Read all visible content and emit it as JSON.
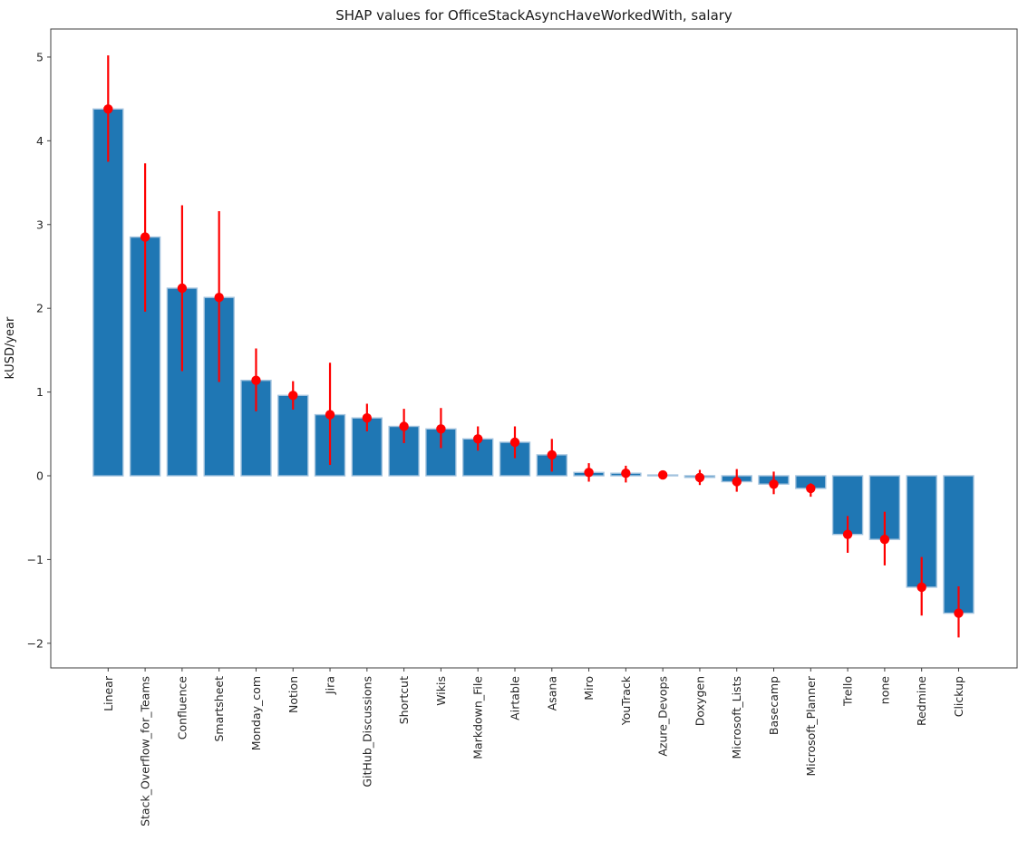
{
  "figure": {
    "title": "SHAP values for OfficeStackAsyncHaveWorkedWith, salary",
    "ylabel": "kUSD/year"
  },
  "chart_data": {
    "type": "bar",
    "title": "SHAP values for OfficeStackAsyncHaveWorkedWith, salary",
    "xlabel": "",
    "ylabel": "kUSD/year",
    "grid": false,
    "legend": null,
    "ylim": [
      -2.294,
      5.335
    ],
    "yticks": [
      5,
      4,
      3,
      2,
      1,
      0,
      -1,
      -2
    ],
    "ytick_labels": [
      "5",
      "4",
      "3",
      "2",
      "1",
      "0",
      "−1",
      "−2"
    ],
    "categories": [
      "Linear",
      "Stack_Overflow_for_Teams",
      "Confluence",
      "Smartsheet",
      "Monday_com",
      "Notion",
      "Jira",
      "GitHub_Discussions",
      "Shortcut",
      "Wikis",
      "Markdown_File",
      "Airtable",
      "Asana",
      "Miro",
      "YouTrack",
      "Azure_Devops",
      "Doxygen",
      "Microsoft_Lists",
      "Basecamp",
      "Microsoft_Planner",
      "Trello",
      "none",
      "Redmine",
      "Clickup"
    ],
    "values": [
      4.38,
      2.85,
      2.24,
      2.13,
      1.14,
      0.96,
      0.73,
      0.69,
      0.59,
      0.56,
      0.44,
      0.4,
      0.25,
      0.04,
      0.03,
      0.01,
      -0.02,
      -0.07,
      -0.1,
      -0.15,
      -0.7,
      -0.76,
      -1.33,
      -1.64
    ],
    "error_low": [
      3.75,
      1.96,
      1.25,
      1.12,
      0.77,
      0.79,
      0.13,
      0.53,
      0.39,
      0.33,
      0.3,
      0.21,
      0.05,
      -0.07,
      -0.08,
      0.01,
      -0.11,
      -0.19,
      -0.22,
      -0.25,
      -0.92,
      -1.07,
      -1.67,
      -1.93
    ],
    "error_high": [
      5.02,
      3.73,
      3.23,
      3.16,
      1.52,
      1.13,
      1.35,
      0.86,
      0.8,
      0.81,
      0.59,
      0.59,
      0.44,
      0.15,
      0.12,
      0.01,
      0.07,
      0.08,
      0.05,
      -0.09,
      -0.48,
      -0.43,
      -0.97,
      -1.32
    ],
    "colors": {
      "bar_fill": "#1f77b4",
      "bar_edge": "#a3c3de",
      "error_bar": "#ff0000",
      "marker": "#ff0000",
      "spine": "#3d3d3d",
      "text": "#262626",
      "background": "#ffffff"
    }
  }
}
